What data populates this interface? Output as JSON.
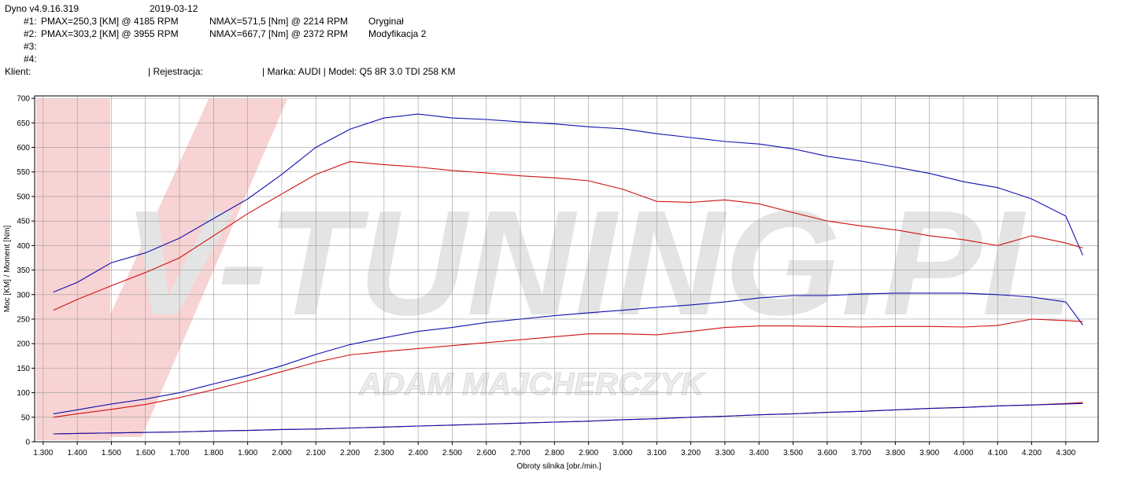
{
  "header": {
    "app": "Dyno v4.9.16.319",
    "date": "2019-03-12",
    "runs": [
      {
        "id": "#1:",
        "pmax": "PMAX=250,3 [KM] @ 4185 RPM",
        "nmax": "NMAX=571,5 [Nm] @ 2214 RPM",
        "label": "Oryginał"
      },
      {
        "id": "#2:",
        "pmax": "PMAX=303,2 [KM] @ 3955 RPM",
        "nmax": "NMAX=667,7 [Nm] @ 2372 RPM",
        "label": "Modyfikacja 2"
      },
      {
        "id": "#3:"
      },
      {
        "id": "#4:"
      }
    ],
    "client": "Klient:",
    "registration": "| Rejestracja:",
    "vehicle": "| Marka: AUDI | Model: Q5 8R 3.0 TDI 258 KM"
  },
  "watermark": "V-TUNING.PL",
  "watermark_author": "ADAM MAJCHERCZYK",
  "chart_data": {
    "type": "line",
    "x_label": "Obroty silnika [obr./min.]",
    "y_label": "Moc [KM] / Moment [Nm]",
    "x": [
      1330,
      1400,
      1500,
      1600,
      1700,
      1800,
      1900,
      2000,
      2100,
      2200,
      2300,
      2400,
      2500,
      2600,
      2700,
      2800,
      2900,
      3000,
      3100,
      3200,
      3300,
      3400,
      3500,
      3600,
      3700,
      3800,
      3900,
      4000,
      4100,
      4200,
      4300,
      4350
    ],
    "xlim": [
      1275,
      4395
    ],
    "ylim": [
      0,
      705
    ],
    "xticks": [
      {
        "value": 1300,
        "label": "1.300"
      },
      {
        "value": 1400,
        "label": "1.400"
      },
      {
        "value": 1500,
        "label": "1.500"
      },
      {
        "value": 1600,
        "label": "1.600"
      },
      {
        "value": 1700,
        "label": "1.700"
      },
      {
        "value": 1800,
        "label": "1.800"
      },
      {
        "value": 1900,
        "label": "1.900"
      },
      {
        "value": 2000,
        "label": "2.000"
      },
      {
        "value": 2100,
        "label": "2.100"
      },
      {
        "value": 2200,
        "label": "2.200"
      },
      {
        "value": 2300,
        "label": "2.300"
      },
      {
        "value": 2400,
        "label": "2.400"
      },
      {
        "value": 2500,
        "label": "2.500"
      },
      {
        "value": 2600,
        "label": "2.600"
      },
      {
        "value": 2700,
        "label": "2.700"
      },
      {
        "value": 2800,
        "label": "2.800"
      },
      {
        "value": 2900,
        "label": "2.900"
      },
      {
        "value": 3000,
        "label": "3.000"
      },
      {
        "value": 3100,
        "label": "3.100"
      },
      {
        "value": 3200,
        "label": "3.200"
      },
      {
        "value": 3300,
        "label": "3.300"
      },
      {
        "value": 3400,
        "label": "3.400"
      },
      {
        "value": 3500,
        "label": "3.500"
      },
      {
        "value": 3600,
        "label": "3.600"
      },
      {
        "value": 3700,
        "label": "3.700"
      },
      {
        "value": 3800,
        "label": "3.800"
      },
      {
        "value": 3900,
        "label": "3.900"
      },
      {
        "value": 4000,
        "label": "4.000"
      },
      {
        "value": 4100,
        "label": "4.100"
      },
      {
        "value": 4200,
        "label": "4.200"
      },
      {
        "value": 4300,
        "label": "4.300"
      }
    ],
    "yticks": [
      0,
      50,
      100,
      150,
      200,
      250,
      300,
      350,
      400,
      450,
      500,
      550,
      600,
      650,
      700
    ],
    "grid": true,
    "series": [
      {
        "color": "#1010b0",
        "values": [
          305,
          325,
          365,
          385,
          415,
          455,
          495,
          545,
          600,
          637,
          660,
          668,
          660,
          657,
          652,
          648,
          642,
          638,
          628,
          620,
          612,
          607,
          597,
          582,
          572,
          560,
          547,
          530,
          518,
          495,
          460,
          380
        ]
      },
      {
        "color": "#d01010",
        "values": [
          268,
          290,
          318,
          345,
          375,
          420,
          465,
          505,
          545,
          571,
          565,
          560,
          553,
          548,
          542,
          538,
          532,
          515,
          490,
          488,
          493,
          485,
          467,
          450,
          440,
          432,
          420,
          412,
          400,
          420,
          405,
          395
        ]
      },
      {
        "color": "#1010b0",
        "values": [
          57,
          65,
          77,
          87,
          100,
          118,
          135,
          155,
          178,
          198,
          212,
          225,
          233,
          243,
          250,
          257,
          263,
          268,
          274,
          279,
          285,
          293,
          298,
          298,
          301,
          303,
          303,
          303,
          300,
          295,
          285,
          238
        ]
      },
      {
        "color": "#d01010",
        "values": [
          50,
          57,
          66,
          76,
          90,
          106,
          124,
          143,
          162,
          177,
          184,
          190,
          196,
          202,
          208,
          214,
          220,
          220,
          218,
          225,
          233,
          236,
          236,
          235,
          234,
          235,
          235,
          234,
          237,
          250,
          247,
          245
        ]
      },
      {
        "color": "#d01010",
        "values": [
          16,
          17,
          18,
          19,
          20,
          22,
          23,
          25,
          26,
          28,
          30,
          32,
          34,
          36,
          38,
          40,
          42,
          45,
          47,
          50,
          52,
          55,
          57,
          60,
          62,
          65,
          68,
          70,
          73,
          75,
          78,
          80
        ]
      },
      {
        "color": "#1010b0",
        "values": [
          16,
          17,
          18,
          19,
          20,
          22,
          23,
          25,
          26,
          28,
          30,
          32,
          34,
          36,
          38,
          40,
          42,
          45,
          47,
          50,
          52,
          55,
          57,
          60,
          62,
          65,
          68,
          70,
          73,
          75,
          77,
          78
        ]
      }
    ]
  }
}
